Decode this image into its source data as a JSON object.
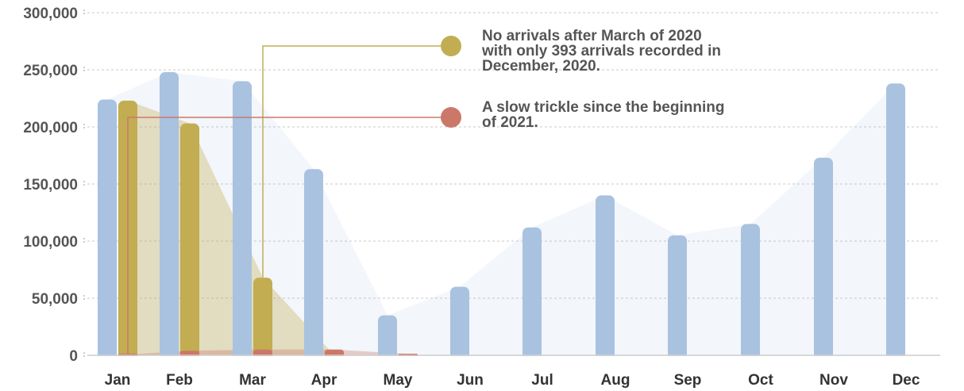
{
  "chart_data": {
    "type": "bar",
    "categories": [
      "Jan",
      "Feb",
      "Mar",
      "Apr",
      "May",
      "Jun",
      "Jul",
      "Aug",
      "Sep",
      "Oct",
      "Nov",
      "Dec"
    ],
    "series": [
      {
        "values": [
          224000,
          248000,
          240000,
          163000,
          35000,
          60000,
          112000,
          140000,
          105000,
          115000,
          173000,
          238000
        ],
        "color": "#a9c2e0"
      },
      {
        "values": [
          223000,
          203000,
          68000,
          0,
          0,
          0,
          0,
          0,
          0,
          0,
          0,
          393
        ],
        "color": "#c2ad52"
      },
      {
        "values": [
          700,
          4000,
          5000,
          5000,
          1200,
          null,
          null,
          null,
          null,
          null,
          null,
          null
        ],
        "color": "#cc7868"
      }
    ],
    "ylim": [
      0,
      300000
    ],
    "yticks": [
      "0",
      "50,000",
      "100,000",
      "150,000",
      "200,000",
      "250,000",
      "300,000"
    ],
    "ytick_values": [
      0,
      50000,
      100000,
      150000,
      200000,
      250000,
      300000
    ],
    "grid": true,
    "annotations": [
      {
        "lines": [
          "No arrivals after March of 2020",
          "with only 393 arrivals recorded in",
          "December, 2020."
        ],
        "color": "#c2ad52",
        "anchor_category": "Mar",
        "anchor_series": 1
      },
      {
        "lines": [
          "A slow trickle since the beginning",
          "of 2021."
        ],
        "color": "#cc7868",
        "anchor_category": "Jan",
        "anchor_series": 2
      }
    ]
  }
}
